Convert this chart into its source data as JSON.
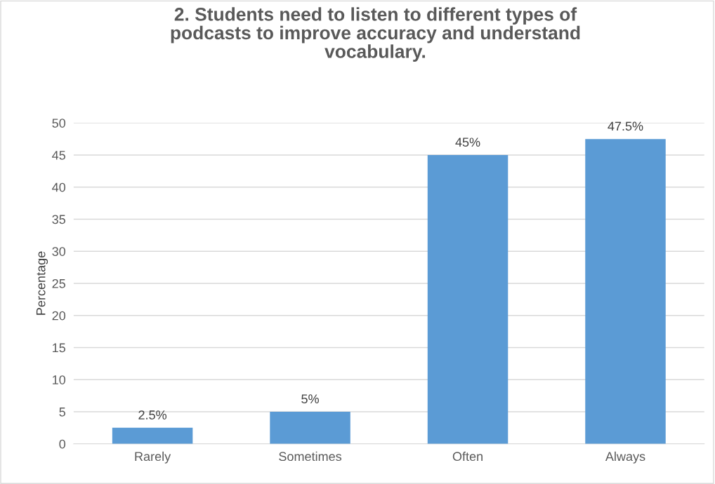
{
  "chart_data": {
    "type": "bar",
    "title": "2. Students need to listen to different types of\npodcasts to improve accuracy and understand\nvocabulary.",
    "ylabel": "Percentage",
    "categories": [
      "Rarely",
      "Sometimes",
      "Often",
      "Always"
    ],
    "values": [
      2.5,
      5,
      45,
      47.5
    ],
    "value_labels": [
      "2.5%",
      "5%",
      "45%",
      "47.5%"
    ],
    "color": "#5b9bd5",
    "ylim": [
      0,
      50
    ],
    "yticks": [
      0,
      5,
      10,
      15,
      20,
      25,
      30,
      35,
      40,
      45,
      50
    ],
    "grid": "y",
    "legend": false
  }
}
